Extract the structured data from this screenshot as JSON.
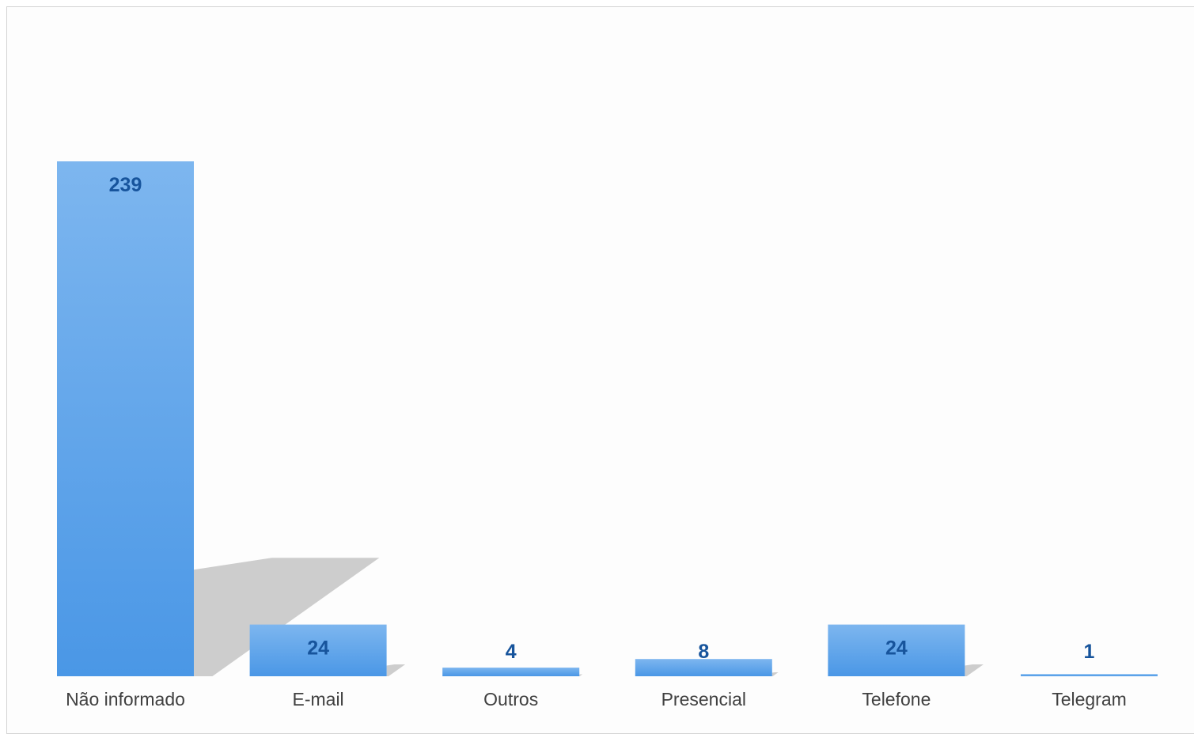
{
  "chart_data": {
    "type": "bar",
    "title": "",
    "xlabel": "",
    "ylabel": "",
    "categories": [
      "Não informado",
      "E-mail",
      "Outros",
      "Presencial",
      "Telefone",
      "Telegram"
    ],
    "values": [
      239,
      24,
      4,
      8,
      24,
      1
    ],
    "ylim": [
      0,
      239
    ],
    "grid": false,
    "legend": "none",
    "data_labels": true,
    "bar_color_top": "#7db6ef",
    "bar_color_bottom": "#4a97e6",
    "label_color": "#17549c",
    "category_label_color": "#404040",
    "shadow_color": "#c8c8c8"
  }
}
